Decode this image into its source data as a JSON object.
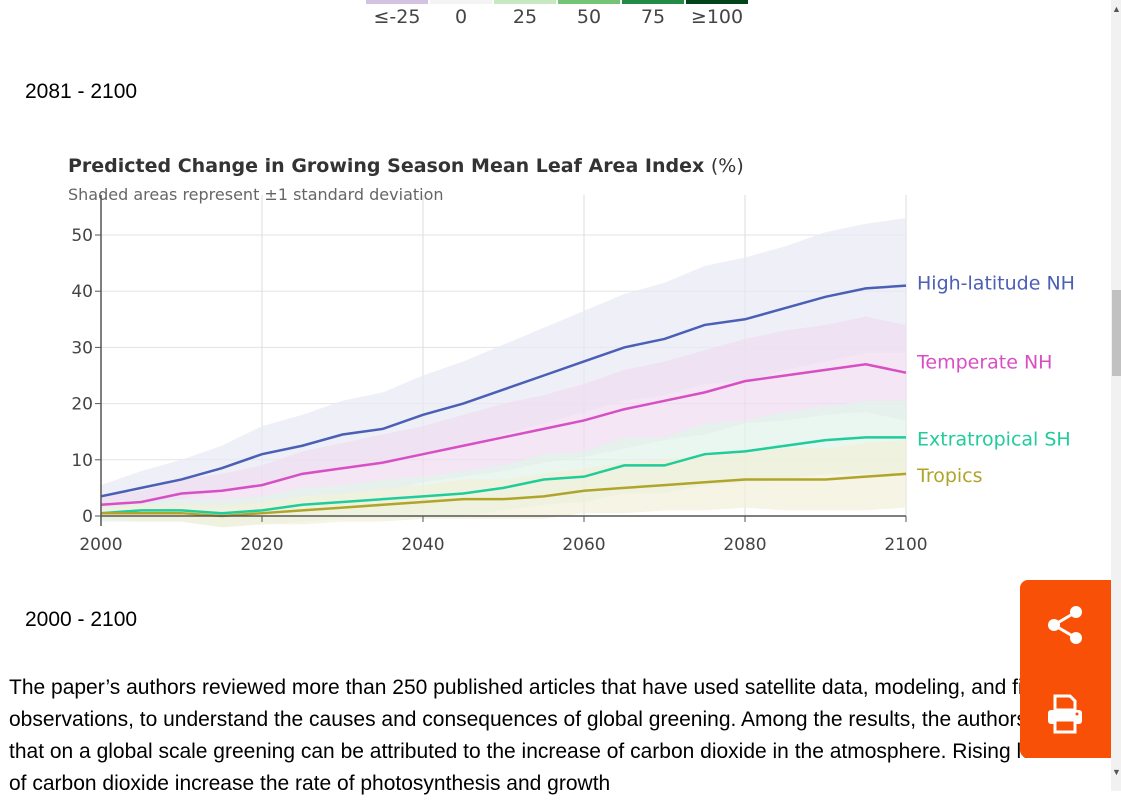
{
  "legend": {
    "items": [
      {
        "label": "≤-25",
        "color": "#d3c3e0"
      },
      {
        "label": "0",
        "color": "#f7f7f7"
      },
      {
        "label": "25",
        "color": "#c7e9c0"
      },
      {
        "label": "50",
        "color": "#74c476"
      },
      {
        "label": "75",
        "color": "#238b45"
      },
      {
        "label": "≥100",
        "color": "#00441b"
      }
    ]
  },
  "caption_top": "2081 - 2100",
  "caption_bottom": "2000 - 2100",
  "paragraph": "The paper’s authors reviewed more than 250 published articles that have used satellite data, modeling, and field observations, to understand the causes and consequences of global greening. Among the results, the authors noted that on a global scale greening can be attributed to the increase of carbon dioxide in the atmosphere. Rising levels of carbon dioxide increase the rate of photosynthesis and growth",
  "actions": {
    "share": "share-icon",
    "print": "print-icon",
    "color": "#f95007"
  },
  "chart_data": {
    "type": "line",
    "title": "Predicted Change in Growing Season Mean Leaf Area Index",
    "title_unit": "(%)",
    "subtitle": "Shaded areas represent ±1 standard deviation",
    "xlim": [
      2000,
      2100
    ],
    "ylim": [
      -5,
      55
    ],
    "xticks": [
      "2000",
      "2020",
      "2040",
      "2060",
      "2080",
      "2100"
    ],
    "yticks": [
      "0",
      "10",
      "20",
      "30",
      "40",
      "50"
    ],
    "grid": true,
    "legend": "right-inline",
    "x": [
      2000,
      2005,
      2010,
      2015,
      2020,
      2025,
      2030,
      2035,
      2040,
      2045,
      2050,
      2055,
      2060,
      2065,
      2070,
      2075,
      2080,
      2085,
      2090,
      2095,
      2100
    ],
    "series": [
      {
        "name": "High-latitude NH",
        "color": "#4a5fb5",
        "band": "#e8eaf4",
        "values": [
          3.5,
          5,
          6.5,
          8.5,
          11,
          12.5,
          14.5,
          15.5,
          18,
          20,
          22.5,
          25,
          27.5,
          30,
          31.5,
          34,
          35,
          37,
          39,
          40.5,
          41
        ],
        "sd": [
          2,
          3,
          3.5,
          4,
          5,
          5.5,
          6,
          6.5,
          7,
          7.5,
          8,
          8.5,
          9,
          9.5,
          10,
          10.5,
          11,
          11,
          11.5,
          11.5,
          12
        ]
      },
      {
        "name": "Temperate NH",
        "color": "#d84fc4",
        "band": "#efdcf0",
        "values": [
          2,
          2.5,
          4,
          4.5,
          5.5,
          7.5,
          8.5,
          9.5,
          11,
          12.5,
          14,
          15.5,
          17,
          19,
          20.5,
          22,
          24,
          25,
          26,
          27,
          25.5
        ],
        "sd": [
          1.5,
          2,
          2.5,
          3,
          3.5,
          4,
          4.5,
          5,
          5,
          5.5,
          6,
          6,
          6.5,
          7,
          7,
          7.5,
          7.5,
          8,
          8,
          8.5,
          8.5
        ]
      },
      {
        "name": "Extratropical SH",
        "color": "#1fcc9a",
        "band": "#dff3ea",
        "values": [
          0.5,
          1,
          1,
          0.5,
          1,
          2,
          2.5,
          3,
          3.5,
          4,
          5,
          6.5,
          7,
          9,
          9,
          11,
          11.5,
          12.5,
          13.5,
          14,
          14
        ],
        "sd": [
          1.5,
          2,
          2,
          2.5,
          2.5,
          3,
          3,
          3.5,
          3.5,
          4,
          4,
          4.5,
          4.5,
          5,
          5,
          5.5,
          5.5,
          6,
          6,
          6.5,
          6.5
        ]
      },
      {
        "name": "Tropics",
        "color": "#b0a52a",
        "band": "#f2f0d8",
        "values": [
          0.5,
          0.5,
          0.5,
          0,
          0.5,
          1,
          1.5,
          2,
          2.5,
          3,
          3,
          3.5,
          4.5,
          5,
          5.5,
          6,
          6.5,
          6.5,
          6.5,
          7,
          7.5
        ],
        "sd": [
          1,
          1.5,
          1.5,
          2,
          2,
          2.5,
          2.5,
          3,
          3,
          3.5,
          3.5,
          4,
          4,
          4.5,
          4.5,
          5,
          5,
          5.5,
          5.5,
          6,
          6
        ]
      }
    ]
  }
}
